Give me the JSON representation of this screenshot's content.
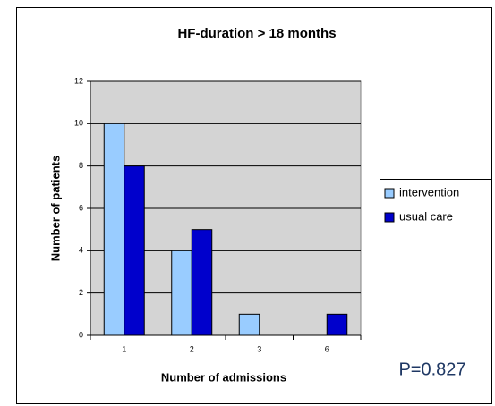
{
  "chart_data": {
    "type": "bar",
    "title": "HF-duration > 18 months",
    "x_label": "Number of admissions",
    "y_label": "Number of patients",
    "categories": [
      "1",
      "2",
      "3",
      "6"
    ],
    "series": [
      {
        "name": "intervention",
        "color": "#99ccff",
        "values": [
          10,
          4,
          1,
          0
        ]
      },
      {
        "name": "usual care",
        "color": "#0000cc",
        "values": [
          8,
          5,
          0,
          1
        ]
      }
    ],
    "ylim": [
      0,
      12
    ],
    "yticks": [
      0,
      2,
      4,
      6,
      8,
      10,
      12
    ],
    "grid": true,
    "legend": "right",
    "annotation": "P=0.827"
  }
}
